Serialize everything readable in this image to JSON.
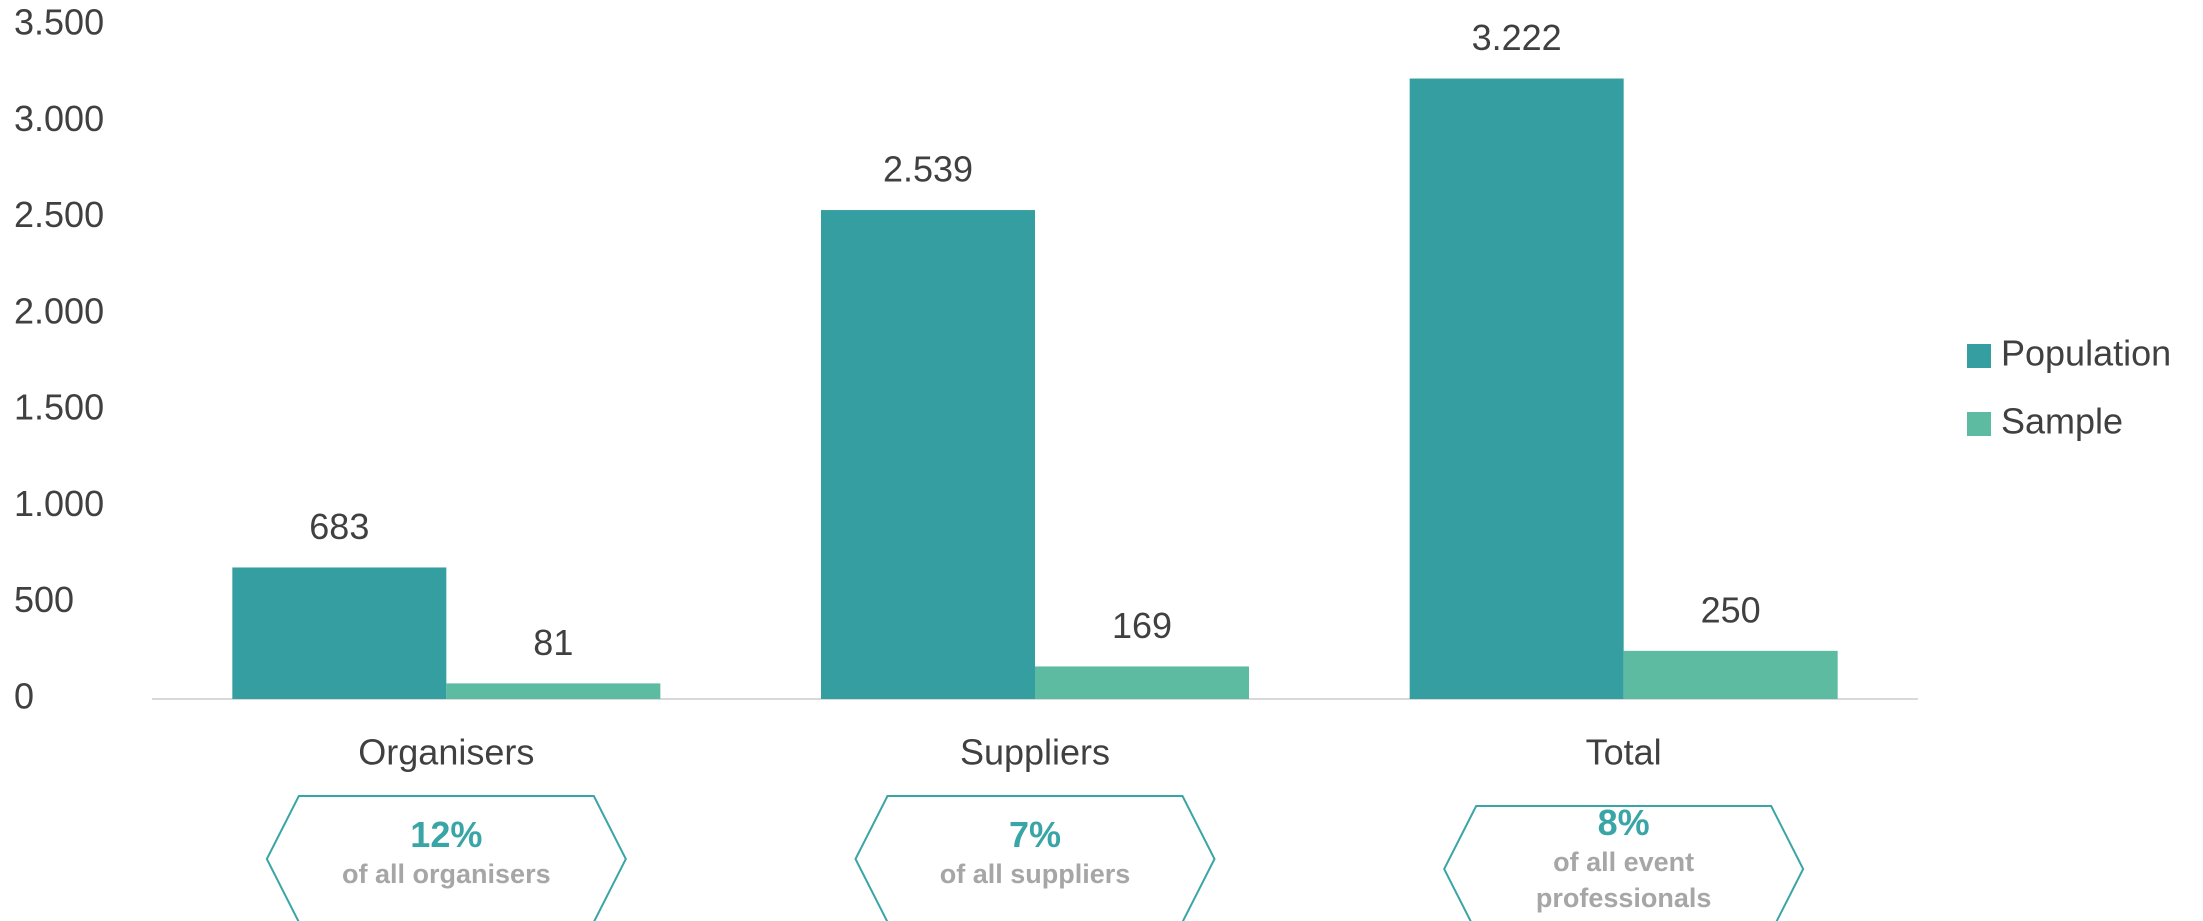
{
  "chart_data": {
    "type": "bar",
    "categories": [
      "Organisers",
      "Suppliers",
      "Total"
    ],
    "series": [
      {
        "name": "Population",
        "color": "#359ea1",
        "values": [
          683,
          2539,
          3222
        ],
        "value_labels": [
          "683",
          "2.539",
          "3.222"
        ]
      },
      {
        "name": "Sample",
        "color": "#5cbba0",
        "values": [
          81,
          169,
          250
        ]
      }
    ],
    "ylim": [
      0,
      3500
    ],
    "yticks": [
      0,
      500,
      {
        "value": 1000,
        "label": "1.000"
      },
      {
        "value": 1500,
        "label": "1.500"
      },
      {
        "value": 2000,
        "label": "2.000"
      },
      {
        "value": 2500,
        "label": "2.500"
      },
      {
        "value": 3000,
        "label": "3.000"
      },
      {
        "value": 3500,
        "label": "3.500"
      }
    ],
    "grid": false,
    "legend": "right",
    "annotations": [
      {
        "value": "12%",
        "text": "of all organisers"
      },
      {
        "value": "7%",
        "text": "of all suppliers"
      },
      {
        "value": "8%",
        "text": "of all event professionals"
      }
    ]
  }
}
